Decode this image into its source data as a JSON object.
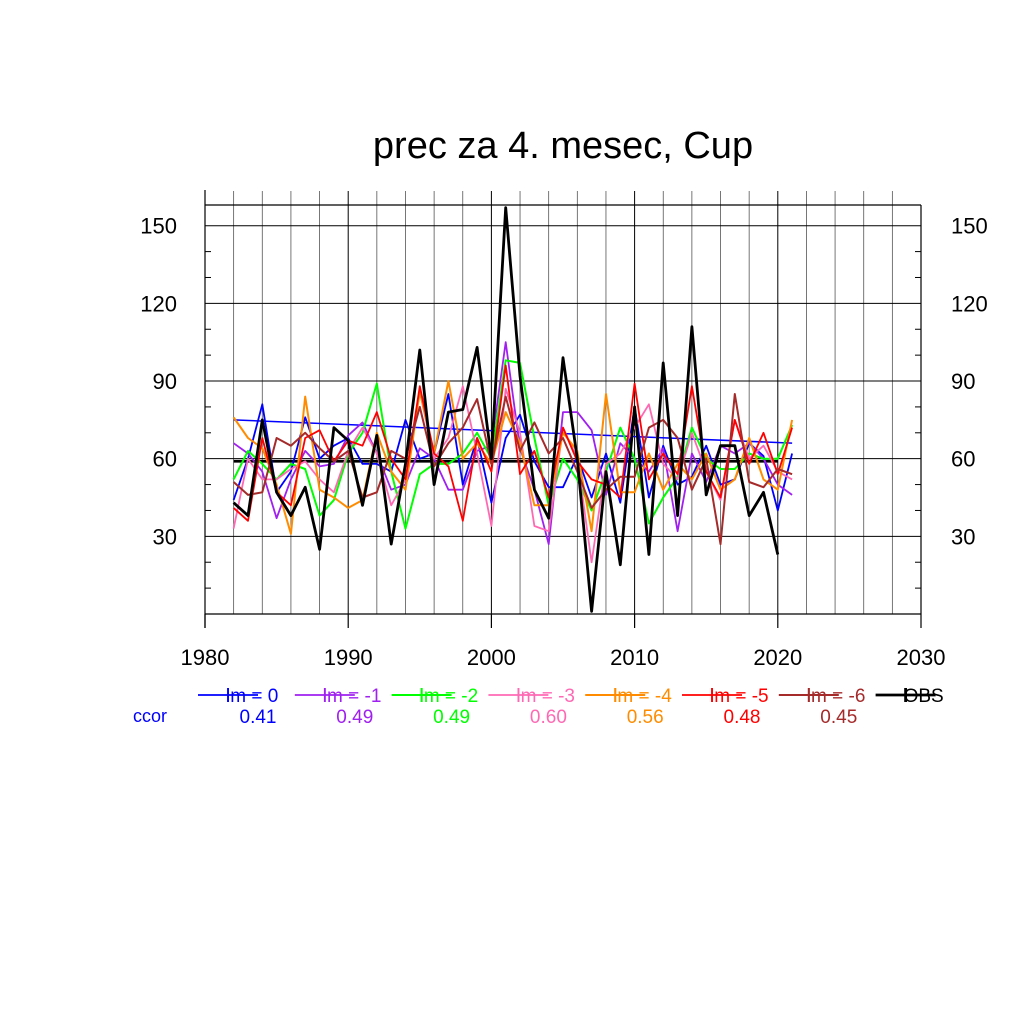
{
  "chart_data": {
    "type": "line",
    "title": "prec za 4. mesec, Cup",
    "xlabel": "",
    "ylabel": "",
    "xlim": [
      1980,
      2030
    ],
    "ylim": [
      0,
      158
    ],
    "x_ticks": [
      1980,
      1990,
      2000,
      2010,
      2020,
      2030
    ],
    "y_ticks": [
      30,
      60,
      90,
      120,
      150
    ],
    "grid": true,
    "legend_position": "bottom",
    "ccor_label": "ccor",
    "x": [
      1982,
      1983,
      1984,
      1985,
      1986,
      1987,
      1988,
      1989,
      1990,
      1991,
      1992,
      1993,
      1994,
      1995,
      1996,
      1997,
      1998,
      1999,
      2000,
      2001,
      2002,
      2003,
      2004,
      2005,
      2006,
      2007,
      2008,
      2009,
      2010,
      2011,
      2012,
      2013,
      2014,
      2015,
      2016,
      2017,
      2018,
      2019,
      2020,
      2021
    ],
    "series": [
      {
        "name": "lm = 0",
        "color": "#0000ff",
        "ccor": "0.41",
        "width": 1.8,
        "values": [
          44,
          60,
          81,
          47,
          55,
          76,
          60,
          65,
          68,
          58,
          58,
          55,
          75,
          60,
          62,
          85,
          50,
          68,
          43,
          68,
          77,
          59,
          49,
          49,
          61,
          45,
          62,
          43,
          80,
          45,
          65,
          50,
          53,
          65,
          50,
          52,
          66,
          61,
          40,
          62
        ]
      },
      {
        "name": "lm = -1",
        "color": "#a020f0",
        "ccor": "0.49",
        "width": 1.8,
        "values": [
          66,
          62,
          55,
          37,
          52,
          63,
          57,
          58,
          69,
          74,
          62,
          48,
          50,
          64,
          60,
          48,
          48,
          63,
          65,
          105,
          64,
          48,
          27,
          78,
          78,
          71,
          46,
          66,
          60,
          55,
          64,
          32,
          62,
          51,
          65,
          62,
          66,
          60,
          50,
          46
        ]
      },
      {
        "name": "lm = -2",
        "color": "#00ff00",
        "ccor": "0.49",
        "width": 2.0,
        "values": [
          52,
          63,
          58,
          52,
          58,
          56,
          38,
          44,
          62,
          70,
          89,
          55,
          33,
          54,
          58,
          58,
          62,
          70,
          60,
          98,
          97,
          68,
          42,
          60,
          52,
          40,
          55,
          72,
          60,
          35,
          45,
          53,
          72,
          60,
          56,
          56,
          62,
          60,
          60,
          73
        ]
      },
      {
        "name": "lm = -3",
        "color": "#ff69b4",
        "ccor": "0.60",
        "width": 1.8,
        "values": [
          33,
          60,
          52,
          52,
          56,
          59,
          52,
          47,
          63,
          72,
          62,
          42,
          52,
          86,
          60,
          68,
          88,
          62,
          34,
          87,
          70,
          34,
          32,
          72,
          60,
          20,
          58,
          62,
          72,
          81,
          58,
          52,
          70,
          55,
          44,
          75,
          60,
          65,
          55,
          52
        ]
      },
      {
        "name": "lm = -4",
        "color": "#ff8c00",
        "ccor": "0.56",
        "width": 2.0,
        "values": [
          76,
          68,
          64,
          50,
          31,
          84,
          48,
          45,
          41,
          44,
          70,
          55,
          48,
          86,
          62,
          90,
          60,
          66,
          58,
          78,
          66,
          42,
          42,
          70,
          63,
          32,
          85,
          47,
          47,
          62,
          48,
          58,
          52,
          62,
          48,
          52,
          68,
          52,
          48,
          75
        ]
      },
      {
        "name": "lm = -5",
        "color": "#ff0000",
        "ccor": "0.48",
        "width": 1.8,
        "values": [
          41,
          36,
          68,
          47,
          42,
          68,
          71,
          59,
          67,
          65,
          78,
          60,
          52,
          88,
          62,
          57,
          36,
          68,
          55,
          96,
          54,
          63,
          45,
          72,
          59,
          52,
          50,
          45,
          89,
          52,
          62,
          54,
          88,
          55,
          45,
          75,
          58,
          70,
          54,
          72
        ]
      },
      {
        "name": "lm = -6",
        "color": "#a52a2a",
        "ccor": "0.45",
        "width": 2.0,
        "values": [
          51,
          46,
          47,
          68,
          65,
          70,
          64,
          59,
          63,
          45,
          47,
          63,
          60,
          80,
          57,
          66,
          72,
          83,
          58,
          84,
          63,
          74,
          62,
          68,
          55,
          41,
          48,
          53,
          53,
          72,
          75,
          68,
          48,
          60,
          27,
          85,
          51,
          49,
          56,
          54
        ]
      },
      {
        "name": "OBS",
        "color": "#000000",
        "ccor": "",
        "width": 2.8,
        "values": [
          43,
          38,
          75,
          47,
          38,
          49,
          25,
          72,
          67,
          42,
          69,
          27,
          58,
          102,
          50,
          78,
          79,
          103,
          60,
          157,
          92,
          48,
          37,
          99,
          60,
          1,
          55,
          19,
          80,
          23,
          97,
          38,
          111,
          46,
          65,
          65,
          38,
          47,
          23,
          null
        ]
      }
    ],
    "reference_lines": [
      {
        "name": "trend",
        "color": "#0000ff",
        "width": 1.5,
        "from": [
          1982,
          75
        ],
        "to": [
          2021,
          66
        ]
      },
      {
        "name": "mean",
        "color": "#000000",
        "width": 2.8,
        "from": [
          1982,
          59
        ],
        "to": [
          2020,
          59
        ]
      }
    ]
  }
}
